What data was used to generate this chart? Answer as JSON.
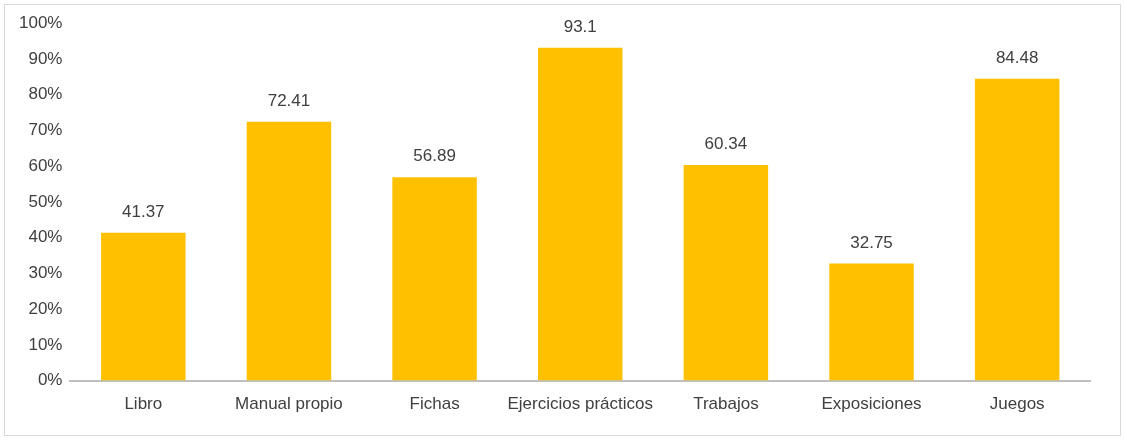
{
  "chart_data": {
    "type": "bar",
    "categories": [
      "Libro",
      "Manual propio",
      "Fichas",
      "Ejercicios prácticos",
      "Trabajos",
      "Exposiciones",
      "Juegos"
    ],
    "values": [
      41.37,
      72.41,
      56.89,
      93.1,
      60.34,
      32.75,
      84.48
    ],
    "color": "#ffc000",
    "ylim": [
      0,
      100
    ],
    "yticks": [
      {
        "value": 0,
        "label": "0%"
      },
      {
        "value": 10,
        "label": "10%"
      },
      {
        "value": 20,
        "label": "20%"
      },
      {
        "value": 30,
        "label": "30%"
      },
      {
        "value": 40,
        "label": "40%"
      },
      {
        "value": 50,
        "label": "50%"
      },
      {
        "value": 60,
        "label": "60%"
      },
      {
        "value": 70,
        "label": "70%"
      },
      {
        "value": 80,
        "label": "80%"
      },
      {
        "value": 90,
        "label": "90%"
      },
      {
        "value": 100,
        "label": "100%"
      }
    ],
    "grid": false,
    "data_labels": true
  }
}
